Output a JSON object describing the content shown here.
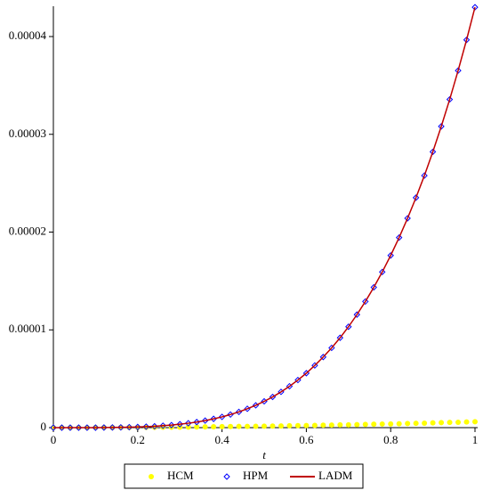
{
  "chart_data": {
    "type": "line",
    "xlabel": "t",
    "x": [
      0,
      0.02,
      0.04,
      0.06,
      0.08,
      0.1,
      0.12,
      0.14,
      0.16,
      0.18,
      0.2,
      0.22,
      0.24,
      0.26,
      0.28,
      0.3,
      0.32,
      0.34,
      0.36,
      0.38,
      0.4,
      0.42,
      0.44,
      0.46,
      0.48,
      0.5,
      0.52,
      0.54,
      0.56,
      0.58,
      0.6,
      0.62,
      0.64,
      0.66,
      0.68,
      0.7,
      0.72,
      0.74,
      0.76,
      0.78,
      0.8,
      0.82,
      0.84,
      0.86,
      0.88,
      0.9,
      0.92,
      0.94,
      0.96,
      0.98,
      1
    ],
    "series": [
      {
        "name": "HCM",
        "color": "#ffff00",
        "marker": "circle",
        "values": [
          0,
          0,
          0,
          0,
          0,
          1e-08,
          1e-08,
          1e-08,
          2e-08,
          2e-08,
          2e-08,
          3e-08,
          3e-08,
          4e-08,
          5e-08,
          5e-08,
          6e-08,
          7e-08,
          8e-08,
          9e-08,
          1e-07,
          1.1e-07,
          1.2e-07,
          1.3e-07,
          1.4e-07,
          1.5e-07,
          1.6e-07,
          1.7e-07,
          1.9e-07,
          2e-07,
          2.2e-07,
          2.3e-07,
          2.5e-07,
          2.6e-07,
          2.8e-07,
          2.9e-07,
          3.1e-07,
          3.3e-07,
          3.5e-07,
          3.7e-07,
          3.8e-07,
          4e-07,
          4.2e-07,
          4.4e-07,
          4.6e-07,
          4.9e-07,
          5.1e-07,
          5.3e-07,
          5.5e-07,
          5.8e-07,
          6e-07
        ]
      },
      {
        "name": "HPM",
        "color": "#0000ff",
        "marker": "diamond",
        "values": [
          0,
          0,
          0,
          0,
          0,
          0,
          1e-08,
          2e-08,
          3e-08,
          5e-08,
          7e-08,
          1e-07,
          1.4e-07,
          2e-07,
          2.6e-07,
          3.5e-07,
          4.5e-07,
          5.7e-07,
          7.2e-07,
          9e-07,
          1.1e-06,
          1.34e-06,
          1.61e-06,
          1.93e-06,
          2.28e-06,
          2.69e-06,
          3.14e-06,
          3.66e-06,
          4.23e-06,
          4.87e-06,
          5.57e-06,
          6.36e-06,
          7.22e-06,
          8.16e-06,
          9.19e-06,
          1.032e-05,
          1.156e-05,
          1.29e-05,
          1.435e-05,
          1.592e-05,
          1.761e-05,
          1.944e-05,
          2.141e-05,
          2.352e-05,
          2.578e-05,
          2.821e-05,
          3.081e-05,
          3.357e-05,
          3.652e-05,
          3.966e-05,
          4.3e-05
        ]
      },
      {
        "name": "LADM",
        "color": "#c00000",
        "marker": null,
        "values": [
          0,
          0,
          0,
          0,
          0,
          0,
          1e-08,
          2e-08,
          3e-08,
          5e-08,
          7e-08,
          1e-07,
          1.4e-07,
          2e-07,
          2.6e-07,
          3.5e-07,
          4.5e-07,
          5.7e-07,
          7.2e-07,
          9e-07,
          1.1e-06,
          1.34e-06,
          1.61e-06,
          1.93e-06,
          2.28e-06,
          2.69e-06,
          3.14e-06,
          3.66e-06,
          4.23e-06,
          4.87e-06,
          5.57e-06,
          6.36e-06,
          7.22e-06,
          8.16e-06,
          9.19e-06,
          1.032e-05,
          1.156e-05,
          1.29e-05,
          1.435e-05,
          1.592e-05,
          1.761e-05,
          1.944e-05,
          2.141e-05,
          2.352e-05,
          2.578e-05,
          2.821e-05,
          3.081e-05,
          3.357e-05,
          3.652e-05,
          3.966e-05,
          4.3e-05
        ]
      }
    ],
    "xlim": [
      0,
      1
    ],
    "xticks": [
      0,
      0.2,
      0.4,
      0.6,
      0.8,
      1
    ],
    "ylim": [
      0,
      4.31e-05
    ],
    "yticks": [
      0,
      1e-05,
      2e-05,
      3e-05,
      4e-05
    ],
    "legend": "bottom",
    "grid": false
  }
}
